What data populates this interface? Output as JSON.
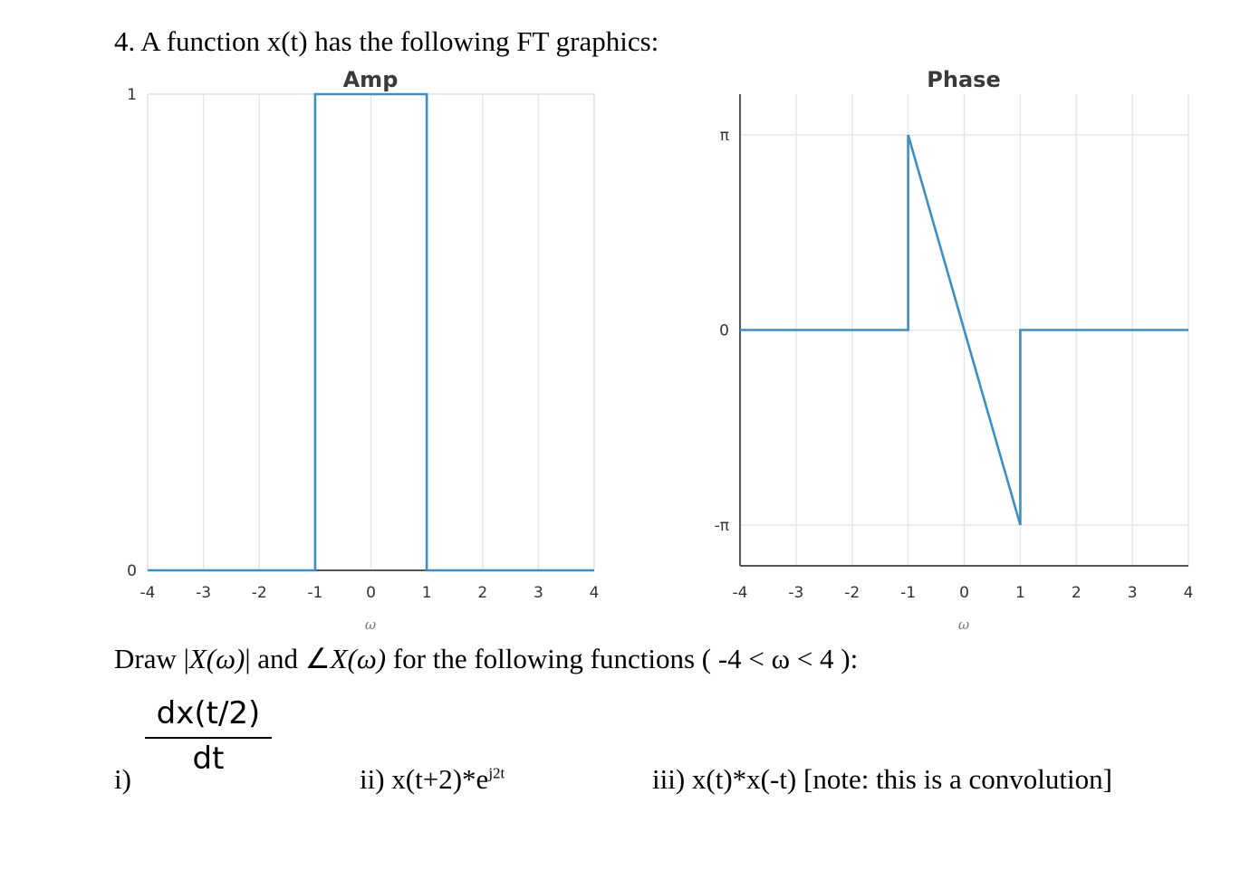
{
  "question": {
    "title": "4. A function x(t) has the following FT graphics:",
    "instruction_prefix": "Draw |",
    "instruction_mag": "X(ω)",
    "instruction_mid": "| and ",
    "instruction_angle": "∠",
    "instruction_phase": "X(ω)",
    "instruction_suffix": " for the following functions ( -4 < ω < 4 ):",
    "items": {
      "i_label": "i)",
      "i_numerator": "dx(t/2)",
      "i_denominator": "dt",
      "ii_text": "ii) x(t+2)*e",
      "ii_sup": "j2t",
      "iii_text": "iii) x(t)*x(-t) [note: this is a convolution]"
    }
  },
  "colors": {
    "line": "#3a8fc3",
    "grid": "#e6e6e6",
    "axis": "#555555"
  },
  "chart_data": [
    {
      "type": "line",
      "title": "Amp",
      "xlabel": "ω",
      "ylabel": "",
      "xlim": [
        -4,
        4
      ],
      "ylim": [
        0,
        1
      ],
      "xticks": [
        "-4",
        "-3",
        "-2",
        "-1",
        "0",
        "1",
        "2",
        "3",
        "4"
      ],
      "yticks": [
        "0",
        "1"
      ],
      "grid": true,
      "series": [
        {
          "x": [
            -4,
            -1,
            -1,
            1,
            1,
            4
          ],
          "y": [
            0,
            0,
            1,
            1,
            0,
            0
          ]
        }
      ]
    },
    {
      "type": "line",
      "title": "Phase",
      "xlabel": "ω",
      "ylabel": "",
      "xlim": [
        -4,
        4
      ],
      "ylim": [
        -3.8,
        3.8
      ],
      "xticks": [
        "-4",
        "-3",
        "-2",
        "-1",
        "0",
        "1",
        "2",
        "3",
        "4"
      ],
      "yticks": [
        "-π",
        "0",
        "π"
      ],
      "grid": true,
      "series": [
        {
          "x": [
            -4,
            -1,
            -1,
            1,
            1,
            4
          ],
          "y": [
            0,
            0,
            3.1416,
            -3.1416,
            0,
            0
          ]
        }
      ]
    }
  ]
}
